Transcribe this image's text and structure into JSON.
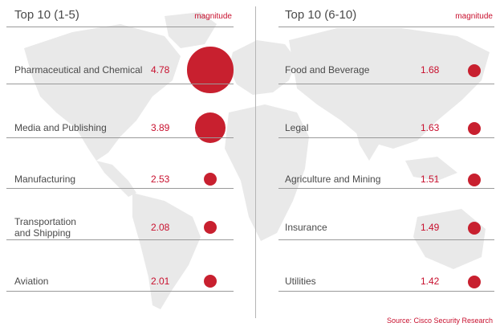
{
  "chart_data": [
    {
      "type": "bubble",
      "title": "Top 10 (1-5)",
      "value_label": "magnitude",
      "items": [
        {
          "label": "Pharmaceutical and Chemical",
          "value": 4.78
        },
        {
          "label": "Media and Publishing",
          "value": 3.89
        },
        {
          "label": "Manufacturing",
          "value": 2.53
        },
        {
          "label": "Transportation\nand Shipping",
          "value": 2.08
        },
        {
          "label": "Aviation",
          "value": 2.01
        }
      ]
    },
    {
      "type": "bubble",
      "title": "Top 10 (6-10)",
      "value_label": "magnitude",
      "items": [
        {
          "label": "Food and Beverage",
          "value": 1.68
        },
        {
          "label": "Legal",
          "value": 1.63
        },
        {
          "label": "Agriculture and Mining",
          "value": 1.51
        },
        {
          "label": "Insurance",
          "value": 1.49
        },
        {
          "label": "Utilities",
          "value": 1.42
        }
      ]
    }
  ],
  "source": "Source: Cisco Security Research",
  "colors": {
    "accent": "#c8202f",
    "map": "#e8e8e8",
    "text": "#4a4a4a"
  }
}
